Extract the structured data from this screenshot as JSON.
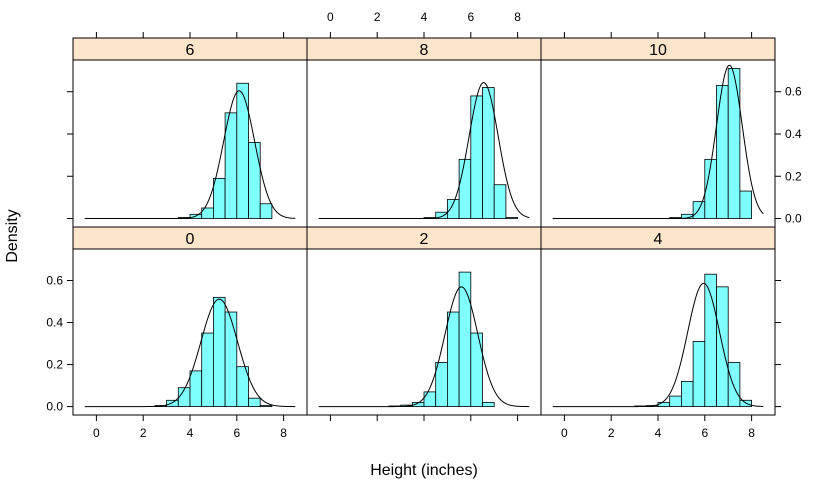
{
  "chart_data": {
    "type": "histogram-trellis",
    "xlabel": "Height (inches)",
    "ylabel": "Density",
    "xlim": [
      -1,
      9
    ],
    "ylim": [
      -0.04,
      0.75
    ],
    "x_ticks": [
      0,
      2,
      4,
      6,
      8
    ],
    "y_ticks": [
      0.0,
      0.2,
      0.4,
      0.6
    ],
    "y_tick_labels": [
      "0.0",
      "0.2",
      "0.4",
      "0.6"
    ],
    "colors": {
      "bar_fill": "#80ffff",
      "bar_stroke": "#000000",
      "strip_fill": "#fde5cc",
      "curve": "#000000"
    },
    "bin_width": 0.5,
    "panels": [
      {
        "strip": "6",
        "bins": [
          {
            "x0": 3.5,
            "density": 0.005
          },
          {
            "x0": 4.0,
            "density": 0.02
          },
          {
            "x0": 4.5,
            "density": 0.05
          },
          {
            "x0": 5.0,
            "density": 0.19
          },
          {
            "x0": 5.5,
            "density": 0.5
          },
          {
            "x0": 6.0,
            "density": 0.64
          },
          {
            "x0": 6.5,
            "density": 0.36
          },
          {
            "x0": 7.0,
            "density": 0.07
          }
        ],
        "curve": {
          "mean": 6.1,
          "sd": 0.66
        }
      },
      {
        "strip": "8",
        "bins": [
          {
            "x0": 4.0,
            "density": 0.005
          },
          {
            "x0": 4.5,
            "density": 0.03
          },
          {
            "x0": 5.0,
            "density": 0.09
          },
          {
            "x0": 5.5,
            "density": 0.28
          },
          {
            "x0": 6.0,
            "density": 0.58
          },
          {
            "x0": 6.5,
            "density": 0.62
          },
          {
            "x0": 7.0,
            "density": 0.16
          },
          {
            "x0": 7.5,
            "density": 0.005
          }
        ],
        "curve": {
          "mean": 6.55,
          "sd": 0.62
        }
      },
      {
        "strip": "10",
        "bins": [
          {
            "x0": 4.5,
            "density": 0.005
          },
          {
            "x0": 5.0,
            "density": 0.02
          },
          {
            "x0": 5.5,
            "density": 0.08
          },
          {
            "x0": 6.0,
            "density": 0.28
          },
          {
            "x0": 6.5,
            "density": 0.63
          },
          {
            "x0": 7.0,
            "density": 0.71
          },
          {
            "x0": 7.5,
            "density": 0.13
          }
        ],
        "curve": {
          "mean": 7.05,
          "sd": 0.55
        }
      },
      {
        "strip": "0",
        "bins": [
          {
            "x0": 2.5,
            "density": 0.005
          },
          {
            "x0": 3.0,
            "density": 0.03
          },
          {
            "x0": 3.5,
            "density": 0.09
          },
          {
            "x0": 4.0,
            "density": 0.17
          },
          {
            "x0": 4.5,
            "density": 0.35
          },
          {
            "x0": 5.0,
            "density": 0.52
          },
          {
            "x0": 5.5,
            "density": 0.45
          },
          {
            "x0": 6.0,
            "density": 0.19
          },
          {
            "x0": 6.5,
            "density": 0.04
          },
          {
            "x0": 7.0,
            "density": 0.005
          }
        ],
        "curve": {
          "mean": 5.25,
          "sd": 0.78
        }
      },
      {
        "strip": "2",
        "bins": [
          {
            "x0": 2.5,
            "density": 0.003
          },
          {
            "x0": 3.0,
            "density": 0.007
          },
          {
            "x0": 3.5,
            "density": 0.02
          },
          {
            "x0": 4.0,
            "density": 0.07
          },
          {
            "x0": 4.5,
            "density": 0.21
          },
          {
            "x0": 5.0,
            "density": 0.45
          },
          {
            "x0": 5.5,
            "density": 0.64
          },
          {
            "x0": 6.0,
            "density": 0.35
          },
          {
            "x0": 6.5,
            "density": 0.02
          }
        ],
        "curve": {
          "mean": 5.6,
          "sd": 0.7
        }
      },
      {
        "strip": "4",
        "bins": [
          {
            "x0": 3.0,
            "density": 0.003
          },
          {
            "x0": 3.5,
            "density": 0.005
          },
          {
            "x0": 4.0,
            "density": 0.02
          },
          {
            "x0": 4.5,
            "density": 0.05
          },
          {
            "x0": 5.0,
            "density": 0.12
          },
          {
            "x0": 5.5,
            "density": 0.31
          },
          {
            "x0": 6.0,
            "density": 0.63
          },
          {
            "x0": 6.5,
            "density": 0.57
          },
          {
            "x0": 7.0,
            "density": 0.21
          },
          {
            "x0": 7.5,
            "density": 0.03
          }
        ],
        "curve": {
          "mean": 5.95,
          "sd": 0.68
        }
      }
    ]
  }
}
